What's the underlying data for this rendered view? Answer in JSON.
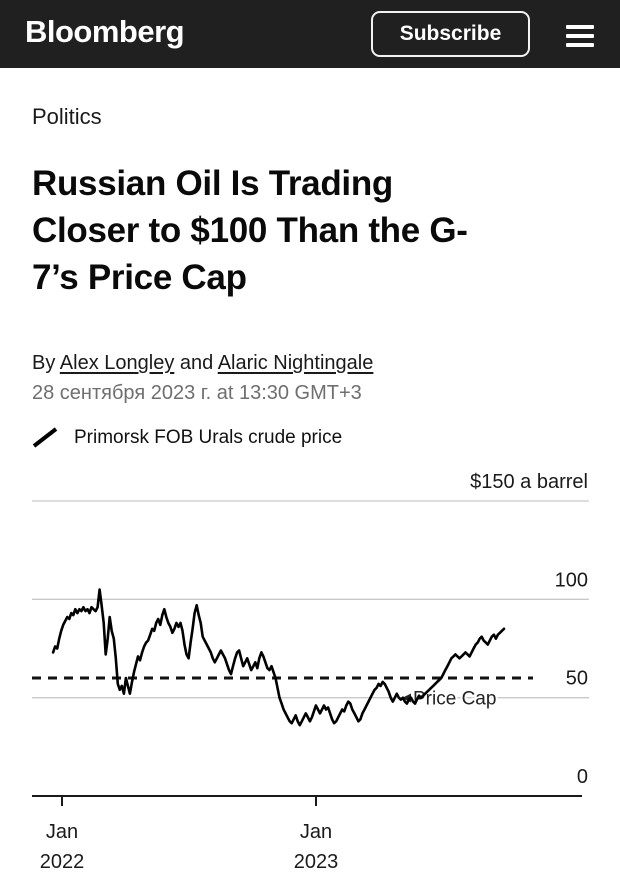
{
  "header": {
    "logo": "Bloomberg",
    "subscribe_label": "Subscribe",
    "menu_icon": "hamburger-menu-icon"
  },
  "article": {
    "section": "Politics",
    "headline": "Russian Oil Is Trading Closer to $100 Than the G-7's Price Cap",
    "headline_lines": [
      "Russian Oil Is Trading",
      "Closer to $100 Than the G-",
      "7’s Price Cap"
    ],
    "byline_prefix": "By ",
    "authors": [
      "Alex Longley",
      "Alaric Nightingale"
    ],
    "byline_join": " and ",
    "dateline": "28 сентября 2023 г. at 13:30 GMT+3"
  },
  "chart_data": {
    "type": "line",
    "title": "",
    "unit_label": "$150 a barrel",
    "legend": {
      "marker": "line-slash-icon",
      "label": "Primorsk FOB Urals crude price"
    },
    "y_axis": {
      "side": "right",
      "range": [
        0,
        155
      ],
      "gridline_values": [
        150,
        100,
        50
      ],
      "tick_labels": [
        {
          "value": 100,
          "label": "100"
        },
        {
          "value": 50,
          "label": "50"
        },
        {
          "value": 0,
          "label": "0"
        }
      ]
    },
    "x_axis": {
      "range_decimal_years": [
        2021.87,
        2024.05
      ],
      "ticks": [
        {
          "t": 2022.0,
          "label_month": "Jan",
          "label_year": "2022"
        },
        {
          "t": 2023.0,
          "label_month": "Jan",
          "label_year": "2023"
        }
      ]
    },
    "reference_line": {
      "value": 60,
      "label": "Price Cap",
      "style": "dashed",
      "color": "#121212"
    },
    "series": [
      {
        "name": "Primorsk FOB Urals crude price",
        "color": "#000000",
        "t_start": 2021.965,
        "t_end": 2023.74,
        "unit": "USD per barrel",
        "values": [
          73,
          76,
          75,
          80,
          84,
          87,
          89,
          91,
          90,
          93,
          92,
          95,
          93,
          95,
          94,
          96,
          94,
          95,
          93,
          96,
          95,
          94,
          96,
          105,
          97,
          88,
          72,
          80,
          91,
          84,
          80,
          70,
          57,
          54,
          56,
          52,
          60,
          56,
          52,
          58,
          63,
          67,
          71,
          69,
          73,
          76,
          78,
          79,
          82,
          85,
          84,
          88,
          90,
          87,
          92,
          95,
          91,
          88,
          86,
          83,
          85,
          88,
          86,
          88,
          84,
          77,
          72,
          70,
          78,
          85,
          93,
          97,
          92,
          88,
          81,
          79,
          77,
          75,
          73,
          70,
          68,
          70,
          72,
          74,
          72,
          70,
          67,
          64,
          62,
          66,
          70,
          73,
          74,
          70,
          66,
          68,
          70,
          67,
          64,
          66,
          68,
          65,
          70,
          73,
          71,
          68,
          65,
          64,
          66,
          63,
          60,
          55,
          50,
          47,
          44,
          42,
          40,
          38,
          37,
          39,
          41,
          38,
          36,
          38,
          40,
          42,
          40,
          38,
          40,
          43,
          46,
          44,
          42,
          44,
          46,
          44,
          45,
          42,
          39,
          37,
          38,
          40,
          42,
          44,
          43,
          46,
          48,
          47,
          44,
          42,
          40,
          38,
          39,
          42,
          44,
          46,
          48,
          50,
          52,
          54,
          55,
          57,
          56,
          58,
          57,
          55,
          53,
          50,
          48,
          50,
          52,
          50,
          49,
          50,
          48,
          47,
          49,
          50,
          48,
          47,
          49,
          51,
          50,
          51,
          52,
          53,
          54,
          55,
          56,
          57,
          58,
          59,
          60,
          62,
          64,
          66,
          68,
          70,
          71,
          72,
          71,
          70,
          71,
          72,
          73,
          72,
          71,
          73,
          75,
          77,
          78,
          80,
          81,
          79,
          78,
          77,
          79,
          81,
          82,
          80,
          82,
          83,
          84,
          85
        ]
      }
    ]
  }
}
